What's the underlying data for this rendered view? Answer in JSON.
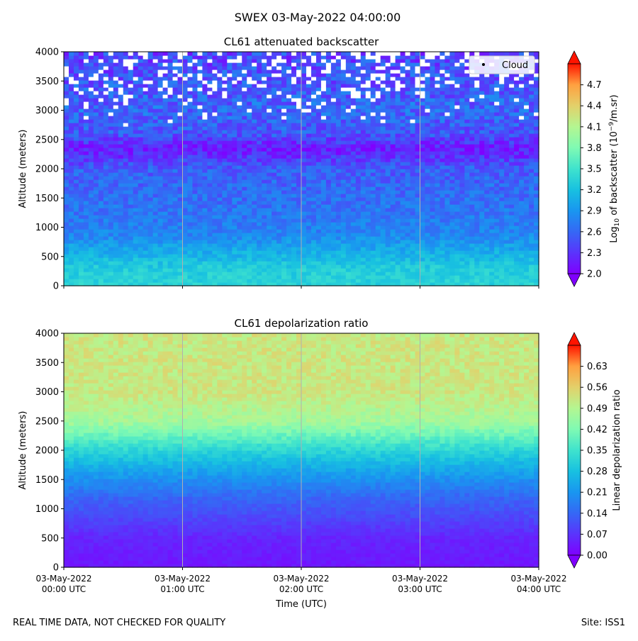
{
  "page": {
    "suptitle": "SWEX 03-May-2022 04:00:00",
    "footer_left": "REAL TIME DATA, NOT CHECKED FOR QUALITY",
    "footer_right": "Site: ISS1"
  },
  "chart_data": [
    {
      "type": "heatmap",
      "title": "CL61 attenuated backscatter",
      "xlabel": "",
      "ylabel": "Altitude (meters)",
      "ylim": [
        0,
        4000
      ],
      "yticks": [
        "0",
        "500",
        "1000",
        "1500",
        "2000",
        "2500",
        "3000",
        "3500",
        "4000"
      ],
      "x_ticks_hours": [
        0,
        1,
        2,
        3,
        4
      ],
      "colorbar": {
        "label_prefix": "Log",
        "label_sub": "10",
        "label_mid": " of backscatter (10",
        "label_sup": "−9",
        "label_suffix": "/m.sr)",
        "range": [
          2.0,
          5.0
        ],
        "ticks": [
          "2.0",
          "2.3",
          "2.6",
          "2.9",
          "3.2",
          "3.5",
          "3.8",
          "4.1",
          "4.4",
          "4.7"
        ]
      },
      "legend": {
        "label": "Cloud",
        "position": "top-right"
      },
      "profile": [
        {
          "alt": 0,
          "value": 3.35
        },
        {
          "alt": 300,
          "value": 3.3
        },
        {
          "alt": 600,
          "value": 3.05
        },
        {
          "alt": 900,
          "value": 2.78
        },
        {
          "alt": 1200,
          "value": 2.7
        },
        {
          "alt": 1600,
          "value": 2.62
        },
        {
          "alt": 2000,
          "value": 2.55
        },
        {
          "alt": 2200,
          "value": 2.3
        },
        {
          "alt": 2350,
          "value": 2.15
        },
        {
          "alt": 2600,
          "value": 2.5
        },
        {
          "alt": 3000,
          "value": 2.6
        },
        {
          "alt": 3500,
          "value": 2.5
        },
        {
          "alt": 4000,
          "value": 2.4
        }
      ]
    },
    {
      "type": "heatmap",
      "title": "CL61 depolarization ratio",
      "xlabel": "Time (UTC)",
      "ylabel": "Altitude (meters)",
      "ylim": [
        0,
        4000
      ],
      "yticks": [
        "0",
        "500",
        "1000",
        "1500",
        "2000",
        "2500",
        "3000",
        "3500",
        "4000"
      ],
      "x_ticks": [
        {
          "date": "03-May-2022",
          "time": "00:00 UTC"
        },
        {
          "date": "03-May-2022",
          "time": "01:00 UTC"
        },
        {
          "date": "03-May-2022",
          "time": "02:00 UTC"
        },
        {
          "date": "03-May-2022",
          "time": "03:00 UTC"
        },
        {
          "date": "03-May-2022",
          "time": "04:00 UTC"
        }
      ],
      "colorbar": {
        "label": "Linear depolarization ratio",
        "range": [
          0.0,
          0.7
        ],
        "ticks": [
          "0.00",
          "0.07",
          "0.14",
          "0.21",
          "0.28",
          "0.35",
          "0.42",
          "0.49",
          "0.56",
          "0.63"
        ]
      },
      "profile": [
        {
          "alt": 0,
          "value": 0.03
        },
        {
          "alt": 500,
          "value": 0.05
        },
        {
          "alt": 800,
          "value": 0.09
        },
        {
          "alt": 1200,
          "value": 0.14
        },
        {
          "alt": 1600,
          "value": 0.22
        },
        {
          "alt": 2000,
          "value": 0.32
        },
        {
          "alt": 2500,
          "value": 0.47
        },
        {
          "alt": 3000,
          "value": 0.52
        },
        {
          "alt": 3500,
          "value": 0.52
        },
        {
          "alt": 4000,
          "value": 0.52
        }
      ]
    }
  ]
}
